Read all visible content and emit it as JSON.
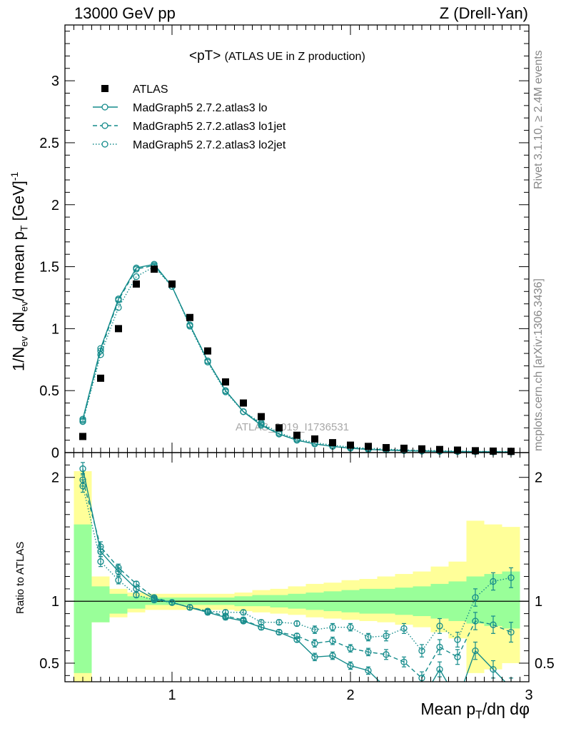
{
  "header": {
    "left": "13000 GeV pp",
    "right": "Z (Drell-Yan)"
  },
  "title": {
    "main": "<pT>",
    "sub": "(ATLAS UE in Z production)"
  },
  "side": {
    "rivet": "Rivet 3.1.10, ≥ 2.4M events",
    "mcplots": "mcplots.cern.ch [arXiv:1306.3436]"
  },
  "watermark": "ATLAS_2019_I1736531",
  "chart_data": {
    "type": "scatter",
    "xlabel": "Mean p_T/dη dφ",
    "ylabel_main": "1/N_ev dN_ev/d mean p_T [GeV]^-1",
    "ylabel_ratio": "Ratio to ATLAS",
    "xlim": [
      0.4,
      3.0
    ],
    "ylim_main": [
      0,
      3.45
    ],
    "ylim_ratio": [
      0.35,
      2.2
    ],
    "x_ticks": [
      "1",
      "2",
      "3"
    ],
    "y_ticks_main": [
      "0",
      "0.5",
      "1",
      "1.5",
      "2",
      "2.5",
      "3"
    ],
    "y_ticks_ratio": [
      "0.5",
      "1",
      "2"
    ],
    "legend": [
      "ATLAS",
      "MadGraph5 2.7.2.atlas3 lo",
      "MadGraph5 2.7.2.atlas3 lo1jet",
      "MadGraph5 2.7.2.atlas3 lo2jet"
    ],
    "x": [
      0.5,
      0.6,
      0.7,
      0.8,
      0.9,
      1.0,
      1.1,
      1.2,
      1.3,
      1.4,
      1.5,
      1.6,
      1.7,
      1.8,
      1.9,
      2.0,
      2.1,
      2.2,
      2.3,
      2.4,
      2.5,
      2.6,
      2.7,
      2.8,
      2.9
    ],
    "data_values": [
      0.13,
      0.6,
      1.0,
      1.36,
      1.48,
      1.36,
      1.09,
      0.82,
      0.57,
      0.4,
      0.29,
      0.2,
      0.14,
      0.11,
      0.08,
      0.06,
      0.05,
      0.04,
      0.035,
      0.03,
      0.025,
      0.02,
      0.015,
      0.012,
      0.01
    ],
    "series": [
      {
        "name": "MadGraph5 2.7.2.atlas3 lo",
        "style": "solid",
        "values": [
          0.27,
          0.84,
          1.24,
          1.49,
          1.52,
          1.34,
          1.03,
          0.74,
          0.5,
          0.33,
          0.22,
          0.15,
          0.1,
          0.07,
          0.05,
          0.035,
          0.025,
          0.02,
          0.015,
          0.012,
          0.01,
          0.008,
          0.007,
          0.005,
          0.004
        ],
        "ratio": [
          2.07,
          1.4,
          1.24,
          1.1,
          1.02,
          0.99,
          0.95,
          0.91,
          0.87,
          0.84,
          0.79,
          0.75,
          0.69,
          0.55,
          0.56,
          0.48,
          0.44,
          0.3,
          0.25,
          0.2,
          0.45,
          0.2,
          0.6,
          0.45,
          0.3
        ]
      },
      {
        "name": "MadGraph5 2.7.2.atlas3 lo1jet",
        "style": "dashed",
        "values": [
          0.26,
          0.82,
          1.23,
          1.48,
          1.51,
          1.34,
          1.03,
          0.74,
          0.5,
          0.33,
          0.23,
          0.15,
          0.1,
          0.07,
          0.05,
          0.037,
          0.028,
          0.022,
          0.017,
          0.013,
          0.011,
          0.009,
          0.008,
          0.007,
          0.006
        ],
        "ratio": [
          1.98,
          1.44,
          1.27,
          1.14,
          1.03,
          0.99,
          0.95,
          0.92,
          0.88,
          0.85,
          0.79,
          0.75,
          0.72,
          0.66,
          0.68,
          0.62,
          0.59,
          0.57,
          0.51,
          0.38,
          0.63,
          0.55,
          0.84,
          0.81,
          0.75
        ]
      },
      {
        "name": "MadGraph5 2.7.2.atlas3 lo2jet",
        "style": "dotted",
        "values": [
          0.25,
          0.79,
          1.17,
          1.42,
          1.5,
          1.34,
          1.02,
          0.73,
          0.49,
          0.33,
          0.24,
          0.16,
          0.11,
          0.08,
          0.06,
          0.045,
          0.035,
          0.028,
          0.022,
          0.018,
          0.015,
          0.012,
          0.01,
          0.009,
          0.008
        ],
        "ratio": [
          1.93,
          1.32,
          1.17,
          1.05,
          1.01,
          0.99,
          0.95,
          0.92,
          0.91,
          0.91,
          0.83,
          0.83,
          0.82,
          0.77,
          0.79,
          0.79,
          0.71,
          0.72,
          0.78,
          0.6,
          0.8,
          0.69,
          1.03,
          1.16,
          1.19
        ]
      }
    ],
    "ratio_err": [
      0.05,
      0.04,
      0.03,
      0.02,
      0.02,
      0.02,
      0.02,
      0.02,
      0.02,
      0.02,
      0.02,
      0.02,
      0.02,
      0.03,
      0.03,
      0.03,
      0.03,
      0.04,
      0.04,
      0.05,
      0.06,
      0.06,
      0.07,
      0.07,
      0.08
    ],
    "band_green": [
      [
        0.42,
        1.62
      ],
      [
        0.83,
        1.12
      ],
      [
        0.9,
        1.06
      ],
      [
        0.94,
        1.04
      ],
      [
        0.97,
        1.03
      ],
      [
        0.97,
        1.03
      ],
      [
        0.97,
        1.03
      ],
      [
        0.97,
        1.03
      ],
      [
        0.97,
        1.03
      ],
      [
        0.96,
        1.04
      ],
      [
        0.96,
        1.05
      ],
      [
        0.95,
        1.05
      ],
      [
        0.94,
        1.06
      ],
      [
        0.93,
        1.07
      ],
      [
        0.92,
        1.08
      ],
      [
        0.91,
        1.09
      ],
      [
        0.9,
        1.1
      ],
      [
        0.9,
        1.1
      ],
      [
        0.89,
        1.11
      ],
      [
        0.88,
        1.12
      ],
      [
        0.86,
        1.14
      ],
      [
        0.84,
        1.16
      ],
      [
        0.82,
        1.2
      ],
      [
        0.8,
        1.22
      ],
      [
        0.78,
        1.24
      ]
    ],
    "band_yellow": [
      [
        0.3,
        2.05
      ],
      [
        0.83,
        1.2
      ],
      [
        0.87,
        1.1
      ],
      [
        0.91,
        1.07
      ],
      [
        0.93,
        1.06
      ],
      [
        0.93,
        1.06
      ],
      [
        0.93,
        1.06
      ],
      [
        0.93,
        1.06
      ],
      [
        0.93,
        1.06
      ],
      [
        0.92,
        1.07
      ],
      [
        0.91,
        1.09
      ],
      [
        0.9,
        1.1
      ],
      [
        0.89,
        1.12
      ],
      [
        0.87,
        1.14
      ],
      [
        0.86,
        1.15
      ],
      [
        0.85,
        1.17
      ],
      [
        0.84,
        1.18
      ],
      [
        0.83,
        1.2
      ],
      [
        0.81,
        1.22
      ],
      [
        0.79,
        1.24
      ],
      [
        0.75,
        1.28
      ],
      [
        0.7,
        1.32
      ],
      [
        0.42,
        1.65
      ],
      [
        0.45,
        1.62
      ],
      [
        0.5,
        1.6
      ]
    ]
  }
}
